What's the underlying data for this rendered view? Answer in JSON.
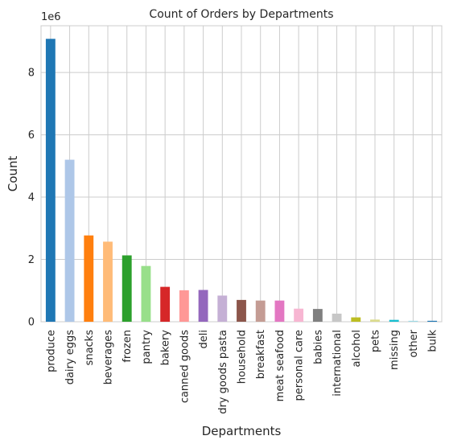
{
  "chart_data": {
    "type": "bar",
    "title": "Count of Orders by Departments",
    "xlabel": "Departments",
    "ylabel": "Count",
    "y_offset_label": "1e6",
    "y_scale": 1000000,
    "ylim": [
      0,
      9.5
    ],
    "yticks": [
      0,
      2,
      4,
      6,
      8
    ],
    "grid": true,
    "legend": "none",
    "categories": [
      "produce",
      "dairy eggs",
      "snacks",
      "beverages",
      "frozen",
      "pantry",
      "bakery",
      "canned goods",
      "deli",
      "dry goods pasta",
      "household",
      "breakfast",
      "meat seafood",
      "personal care",
      "babies",
      "international",
      "alcohol",
      "pets",
      "missing",
      "other",
      "bulk"
    ],
    "values": [
      9.08,
      5.2,
      2.77,
      2.57,
      2.13,
      1.79,
      1.12,
      1.01,
      1.02,
      0.84,
      0.7,
      0.68,
      0.68,
      0.42,
      0.41,
      0.26,
      0.14,
      0.07,
      0.06,
      0.03,
      0.03
    ],
    "colors": [
      "#1f77b4",
      "#aec7e8",
      "#ff7f0e",
      "#ffbb78",
      "#2ca02c",
      "#98df8a",
      "#d62728",
      "#ff9896",
      "#9467bd",
      "#c5b0d5",
      "#8c564b",
      "#c49c94",
      "#e377c2",
      "#f7b6d2",
      "#7f7f7f",
      "#c7c7c7",
      "#bcbd22",
      "#dbdb8d",
      "#17becf",
      "#9edae5",
      "#1f77b4"
    ]
  }
}
